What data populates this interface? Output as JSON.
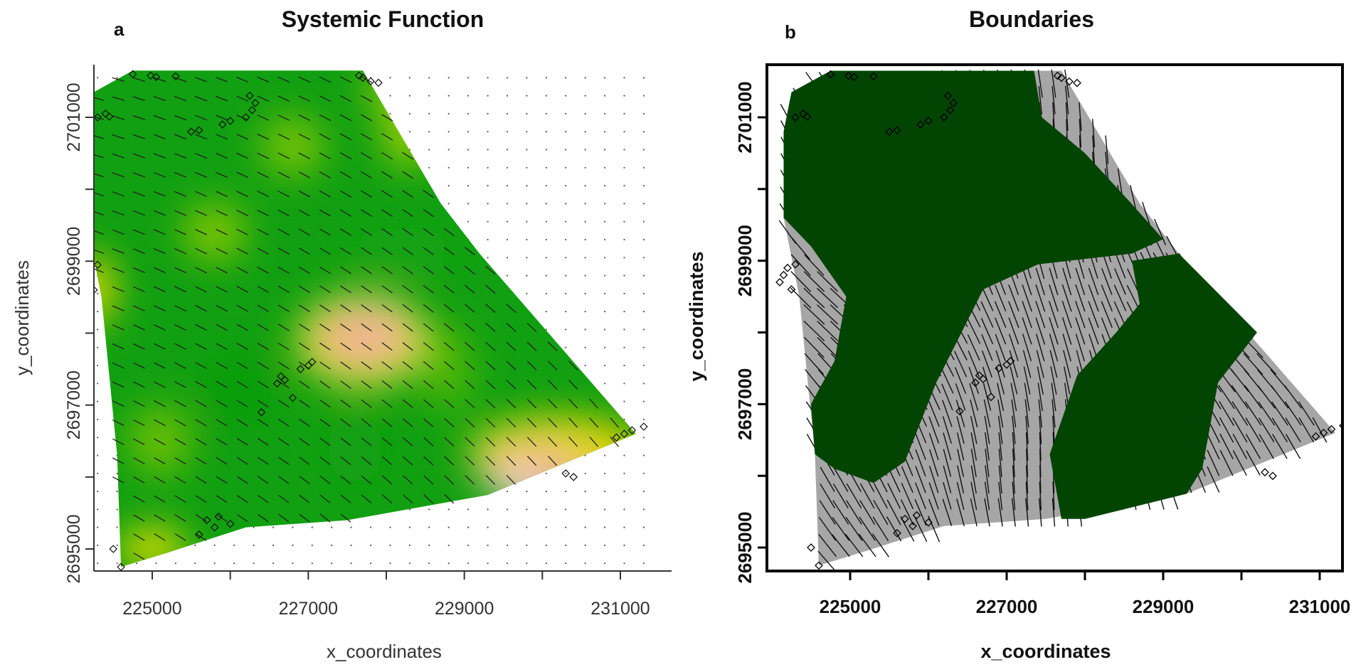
{
  "chart_data": [
    {
      "type": "heatmap",
      "panel_label": "a",
      "title": "Systemic Function",
      "xlabel": "x_coordinates",
      "ylabel": "y_coordinates",
      "xlim": [
        224000,
        231400
      ],
      "ylim": [
        2694700,
        2701700
      ],
      "xticks": [
        "225000",
        "227000",
        "229000",
        "231000"
      ],
      "yticks": [
        "2695000",
        "2697000",
        "2699000",
        "2701000"
      ],
      "colors": {
        "high": "#11a011",
        "mid": "#e6e600",
        "low": "#f2c09a"
      },
      "hull": [
        [
          224750,
          2701650
        ],
        [
          227700,
          2701650
        ],
        [
          228700,
          2699800
        ],
        [
          229200,
          2699100
        ],
        [
          231200,
          2696600
        ],
        [
          229300,
          2695750
        ],
        [
          227500,
          2695400
        ],
        [
          226200,
          2695300
        ],
        [
          225200,
          2694950
        ],
        [
          224600,
          2694750
        ],
        [
          224550,
          2696300
        ],
        [
          224350,
          2698500
        ],
        [
          224150,
          2699600
        ],
        [
          224150,
          2700800
        ],
        [
          224250,
          2701350
        ]
      ],
      "points": [
        [
          224750,
          2701600
        ],
        [
          224980,
          2701580
        ],
        [
          225050,
          2701560
        ],
        [
          225300,
          2701570
        ],
        [
          227650,
          2701580
        ],
        [
          227700,
          2701550
        ],
        [
          227800,
          2701500
        ],
        [
          227900,
          2701480
        ],
        [
          224300,
          2701000
        ],
        [
          224400,
          2701050
        ],
        [
          224450,
          2701010
        ],
        [
          225500,
          2700800
        ],
        [
          225600,
          2700820
        ],
        [
          225900,
          2700900
        ],
        [
          226000,
          2700950
        ],
        [
          226200,
          2701000
        ],
        [
          226280,
          2701100
        ],
        [
          226320,
          2701200
        ],
        [
          226250,
          2701300
        ],
        [
          224100,
          2698700
        ],
        [
          224150,
          2698800
        ],
        [
          224200,
          2698900
        ],
        [
          224250,
          2698600
        ],
        [
          224300,
          2698950
        ],
        [
          226600,
          2697300
        ],
        [
          226650,
          2697400
        ],
        [
          226700,
          2697350
        ],
        [
          226800,
          2697100
        ],
        [
          227000,
          2697550
        ],
        [
          227050,
          2697600
        ],
        [
          226900,
          2697500
        ],
        [
          226400,
          2696900
        ],
        [
          225700,
          2695400
        ],
        [
          225800,
          2695300
        ],
        [
          225600,
          2695200
        ],
        [
          225850,
          2695450
        ],
        [
          226000,
          2695350
        ],
        [
          224500,
          2695000
        ],
        [
          224600,
          2694750
        ],
        [
          230300,
          2696050
        ],
        [
          230400,
          2696000
        ],
        [
          230950,
          2696550
        ],
        [
          231050,
          2696600
        ],
        [
          231150,
          2696650
        ],
        [
          231300,
          2696700
        ]
      ]
    },
    {
      "type": "heatmap",
      "panel_label": "b",
      "title": "Boundaries",
      "xlabel": "x_coordinates",
      "ylabel": "y_coordinates",
      "xlim": [
        224000,
        231400
      ],
      "ylim": [
        2694700,
        2701700
      ],
      "xticks": [
        "225000",
        "227000",
        "229000",
        "231000"
      ],
      "yticks": [
        "2695000",
        "2697000",
        "2699000",
        "2701000"
      ],
      "colors": {
        "function": "#024402",
        "boundary": "#a6a6a6"
      },
      "points": [
        [
          224750,
          2701600
        ],
        [
          224980,
          2701580
        ],
        [
          225050,
          2701560
        ],
        [
          225300,
          2701570
        ],
        [
          227650,
          2701580
        ],
        [
          227700,
          2701550
        ],
        [
          227800,
          2701500
        ],
        [
          227900,
          2701480
        ],
        [
          224300,
          2701000
        ],
        [
          224400,
          2701050
        ],
        [
          224450,
          2701010
        ],
        [
          225500,
          2700800
        ],
        [
          225600,
          2700820
        ],
        [
          225900,
          2700900
        ],
        [
          226000,
          2700950
        ],
        [
          226200,
          2701000
        ],
        [
          226280,
          2701100
        ],
        [
          226320,
          2701200
        ],
        [
          226250,
          2701300
        ],
        [
          224100,
          2698700
        ],
        [
          224150,
          2698800
        ],
        [
          224200,
          2698900
        ],
        [
          224250,
          2698600
        ],
        [
          224300,
          2698950
        ],
        [
          226600,
          2697300
        ],
        [
          226650,
          2697400
        ],
        [
          226700,
          2697350
        ],
        [
          226800,
          2697100
        ],
        [
          227000,
          2697550
        ],
        [
          227050,
          2697600
        ],
        [
          226900,
          2697500
        ],
        [
          226400,
          2696900
        ],
        [
          225700,
          2695400
        ],
        [
          225800,
          2695300
        ],
        [
          225600,
          2695200
        ],
        [
          225850,
          2695450
        ],
        [
          226000,
          2695350
        ],
        [
          224500,
          2695000
        ],
        [
          224600,
          2694750
        ],
        [
          230300,
          2696050
        ],
        [
          230400,
          2696000
        ],
        [
          230950,
          2696550
        ],
        [
          231050,
          2696600
        ],
        [
          231150,
          2696650
        ],
        [
          231300,
          2696700
        ]
      ]
    }
  ]
}
